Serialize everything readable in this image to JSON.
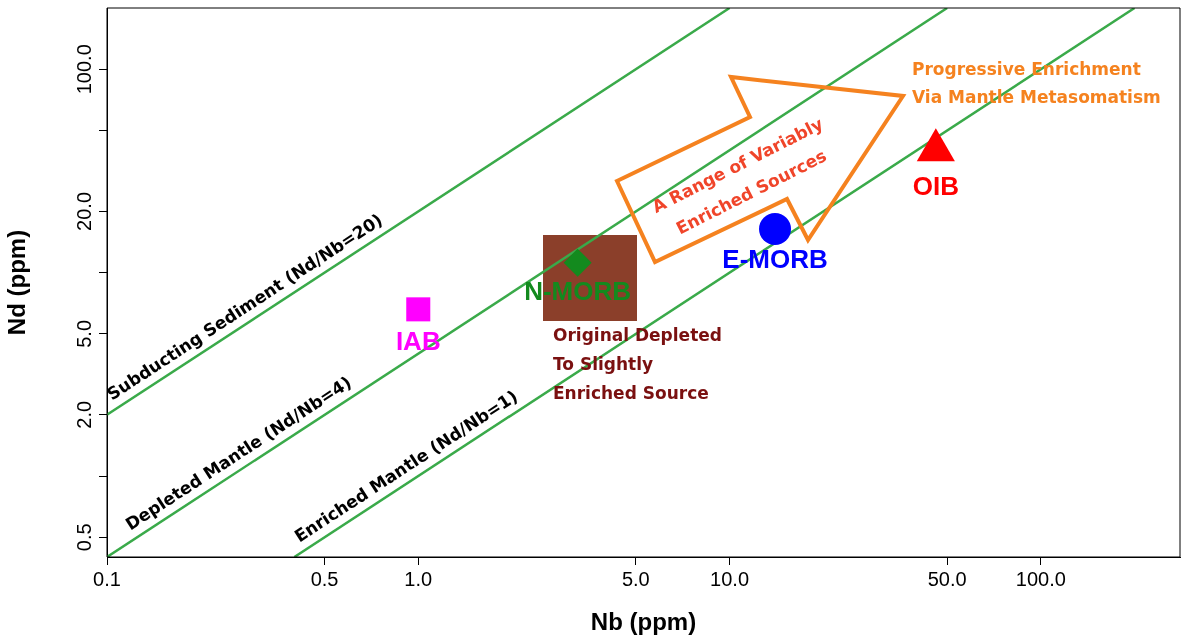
{
  "chart_data": {
    "type": "scatter",
    "xlabel": "Nb (ppm)",
    "ylabel": "Nd (ppm)",
    "log": "xy",
    "grid": false,
    "legend": false,
    "xlim": [
      0.1,
      280
    ],
    "xticks": [
      0.1,
      0.5,
      {
        "value": 1,
        "label": "1.0"
      },
      {
        "value": 5,
        "label": "5.0"
      },
      {
        "value": 10,
        "label": "10.0"
      },
      {
        "value": 50,
        "label": "50.0"
      },
      {
        "value": 100,
        "label": "100.0"
      }
    ],
    "ylim": [
      0.4,
      200
    ],
    "yticks": [
      {
        "value": 0.5,
        "label": "0.5"
      },
      {
        "value": 1,
        "label": null
      },
      {
        "value": 2,
        "label": "2.0"
      },
      {
        "value": 5,
        "label": "5.0"
      },
      {
        "value": 10,
        "label": null
      },
      {
        "value": 20,
        "label": "20.0"
      },
      {
        "value": 50,
        "label": null
      },
      {
        "value": 100,
        "label": "100.0"
      }
    ],
    "series": [
      {
        "type": "line",
        "name": "Subducting Sediment (Nd/Nb=20)",
        "color": "#3aaa4a",
        "marker": "none",
        "x": [
          0.1,
          10
        ],
        "values": [
          2,
          200
        ]
      },
      {
        "type": "line",
        "name": "Depleted Mantle (Nd/Nb=4)",
        "color": "#3aaa4a",
        "marker": "none",
        "x": [
          0.1,
          50
        ],
        "values": [
          0.4,
          200
        ]
      },
      {
        "type": "line",
        "name": "Enriched Mantle (Nd/Nb=1)",
        "color": "#3aaa4a",
        "marker": "none",
        "x": [
          0.4,
          200
        ],
        "values": [
          0.4,
          200
        ]
      },
      {
        "name": "IAB",
        "marker": "square",
        "color": "#ff00ff",
        "x": [
          1.0
        ],
        "values": [
          6.6
        ]
      },
      {
        "name": "N-MORB",
        "marker": "diamond",
        "color": "#138a1e",
        "x": [
          3.25
        ],
        "values": [
          11.2
        ]
      },
      {
        "name": "E-MORB",
        "marker": "circle",
        "color": "#0000ff",
        "x": [
          14
        ],
        "values": [
          16.4
        ]
      },
      {
        "name": "OIB",
        "marker": "triangle",
        "color": "#ff0000",
        "x": [
          46
        ],
        "values": [
          40
        ]
      }
    ],
    "annotations": [
      "A Range of Variably\nEnriched Sources",
      "Progressive Enrichment\nVia Mantle Metasomatism",
      "Original Depleted\nTo Slightly\nEnriched Source"
    ]
  }
}
